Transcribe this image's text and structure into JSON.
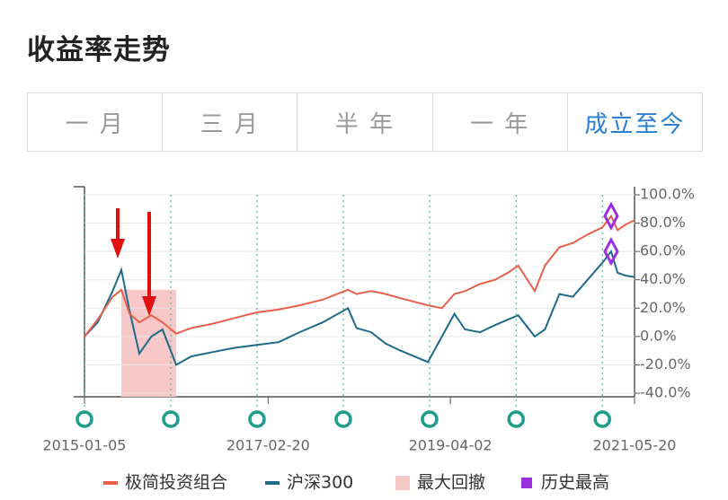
{
  "header": {
    "title": "收益率走势"
  },
  "tabs": {
    "items": [
      "一 月",
      "三 月",
      "半 年",
      "一 年",
      "成立至今"
    ],
    "active": 4
  },
  "chart_data": {
    "type": "line",
    "x": [
      "2015-01-05",
      "2015-03-02",
      "2015-05-04",
      "2015-06-10",
      "2015-07-15",
      "2015-08-25",
      "2015-10-15",
      "2015-12-01",
      "2016-01-28",
      "2016-04-01",
      "2016-07-01",
      "2016-10-01",
      "2017-01-03",
      "2017-04-05",
      "2017-07-03",
      "2017-10-09",
      "2018-01-24",
      "2018-03-01",
      "2018-05-02",
      "2018-07-02",
      "2018-09-03",
      "2018-12-28",
      "2019-02-25",
      "2019-04-19",
      "2019-06-03",
      "2019-08-05",
      "2019-10-08",
      "2019-12-02",
      "2020-01-14",
      "2020-03-24",
      "2020-05-06",
      "2020-07-06",
      "2020-09-01",
      "2020-11-02",
      "2021-01-04",
      "2021-02-10",
      "2021-03-09",
      "2021-04-12",
      "2021-05-20"
    ],
    "series": [
      {
        "name": "极简投资组合",
        "color": "#e8604c",
        "values": [
          0,
          12,
          28,
          33,
          16,
          10,
          15,
          10,
          2,
          6,
          9,
          13,
          17,
          19,
          22,
          26,
          33,
          30,
          32,
          30,
          27,
          22,
          20,
          30,
          32,
          37,
          40,
          45,
          50,
          32,
          50,
          63,
          66,
          72,
          77,
          85,
          75,
          79,
          82
        ]
      },
      {
        "name": "沪深300",
        "color": "#1d6a8a",
        "values": [
          0,
          10,
          32,
          47,
          18,
          -12,
          0,
          5,
          -20,
          -14,
          -11,
          -8,
          -6,
          -4,
          3,
          10,
          20,
          6,
          3,
          -5,
          -10,
          -18,
          0,
          16,
          5,
          3,
          8,
          12,
          15,
          0,
          5,
          30,
          28,
          40,
          52,
          60,
          45,
          43,
          42
        ]
      }
    ],
    "drawdown": {
      "name": "最大回撤",
      "color": "#f8c8c8",
      "start": "2015-06-10",
      "end": "2016-01-28"
    },
    "history_high": {
      "name": "历史最高",
      "color": "#9b30e0",
      "x": "2021-02-10"
    },
    "event_x": [
      "2015-01-05",
      "2016-01-05",
      "2017-01-04",
      "2018-01-04",
      "2019-01-04",
      "2020-01-05",
      "2021-01-04"
    ],
    "xlim": [
      "2015-01-05",
      "2021-05-20"
    ],
    "xticks": [
      "2015-01-05",
      "2017-02-20",
      "2019-04-02",
      "2021-05-20"
    ],
    "ylim": [
      -40,
      100
    ],
    "yticks": [
      {
        "value": -40,
        "label": "-40.0%"
      },
      {
        "value": -20,
        "label": "-20.0%"
      },
      {
        "value": 0,
        "label": "0.0%"
      },
      {
        "value": 20,
        "label": "20.0%"
      },
      {
        "value": 40,
        "label": "40.0%"
      },
      {
        "value": 60,
        "label": "60.0%"
      },
      {
        "value": 80,
        "label": "80.0%"
      },
      {
        "value": 100,
        "label": "100.0%"
      }
    ],
    "grid": true
  }
}
